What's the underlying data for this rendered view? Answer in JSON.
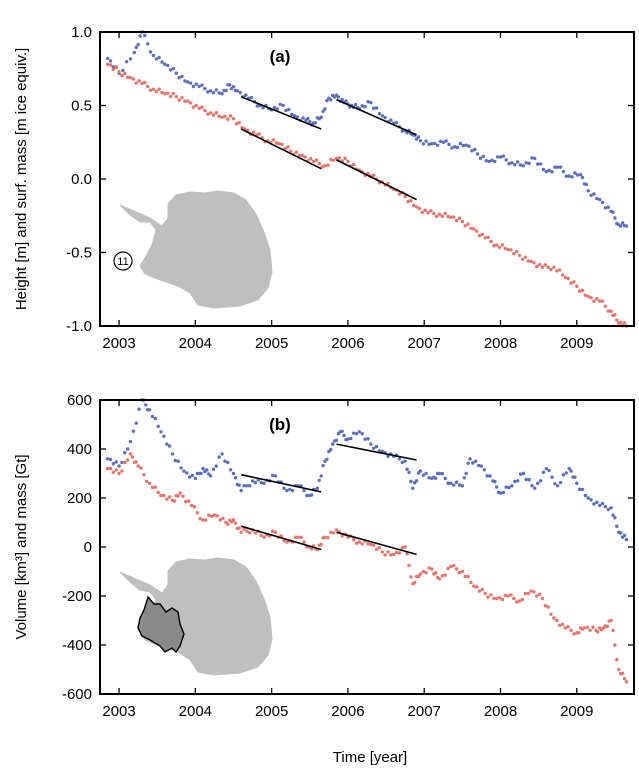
{
  "chart_data": [
    {
      "panel": "(a)",
      "type": "scatter",
      "xlim": [
        2002.75,
        2009.75
      ],
      "ylim": [
        -1.0,
        1.0
      ],
      "xticks": [
        "2003",
        "2004",
        "2005",
        "2006",
        "2007",
        "2008",
        "2009"
      ],
      "yticks": [
        "1.0",
        "0.5",
        "0.0",
        "-0.5",
        "-1.0"
      ],
      "ylabel": "Height [m] and surf. mass [m ice equiv.]",
      "inset_label": "11",
      "series": [
        {
          "color": "#5a6fbd",
          "points": [
            [
              2002.85,
              0.82
            ],
            [
              2003.0,
              0.72
            ],
            [
              2003.2,
              0.86
            ],
            [
              2003.3,
              1.0
            ],
            [
              2003.45,
              0.84
            ],
            [
              2003.6,
              0.78
            ],
            [
              2003.75,
              0.72
            ],
            [
              2003.9,
              0.66
            ],
            [
              2004.05,
              0.63
            ],
            [
              2004.2,
              0.6
            ],
            [
              2004.35,
              0.58
            ],
            [
              2004.45,
              0.64
            ],
            [
              2004.55,
              0.6
            ],
            [
              2004.7,
              0.55
            ],
            [
              2004.85,
              0.5
            ],
            [
              2005.0,
              0.47
            ],
            [
              2005.15,
              0.5
            ],
            [
              2005.3,
              0.43
            ],
            [
              2005.45,
              0.4
            ],
            [
              2005.55,
              0.38
            ],
            [
              2005.65,
              0.42
            ],
            [
              2005.75,
              0.55
            ],
            [
              2005.85,
              0.57
            ],
            [
              2005.95,
              0.52
            ],
            [
              2006.05,
              0.5
            ],
            [
              2006.15,
              0.48
            ],
            [
              2006.3,
              0.52
            ],
            [
              2006.45,
              0.43
            ],
            [
              2006.6,
              0.38
            ],
            [
              2006.75,
              0.33
            ],
            [
              2006.85,
              0.3
            ],
            [
              2006.95,
              0.26
            ],
            [
              2007.1,
              0.24
            ],
            [
              2007.25,
              0.25
            ],
            [
              2007.4,
              0.22
            ],
            [
              2007.55,
              0.23
            ],
            [
              2007.7,
              0.17
            ],
            [
              2007.85,
              0.12
            ],
            [
              2008.0,
              0.15
            ],
            [
              2008.15,
              0.11
            ],
            [
              2008.3,
              0.09
            ],
            [
              2008.45,
              0.14
            ],
            [
              2008.6,
              0.05
            ],
            [
              2008.75,
              0.08
            ],
            [
              2008.9,
              0.02
            ],
            [
              2009.05,
              0.03
            ],
            [
              2009.15,
              -0.08
            ],
            [
              2009.3,
              -0.14
            ],
            [
              2009.45,
              -0.22
            ],
            [
              2009.55,
              -0.31
            ],
            [
              2009.65,
              -0.32
            ]
          ]
        },
        {
          "color": "#e8746c",
          "points": [
            [
              2002.85,
              0.78
            ],
            [
              2003.0,
              0.73
            ],
            [
              2003.15,
              0.69
            ],
            [
              2003.3,
              0.65
            ],
            [
              2003.45,
              0.61
            ],
            [
              2003.6,
              0.58
            ],
            [
              2003.75,
              0.56
            ],
            [
              2003.9,
              0.53
            ],
            [
              2004.05,
              0.48
            ],
            [
              2004.2,
              0.45
            ],
            [
              2004.35,
              0.42
            ],
            [
              2004.5,
              0.41
            ],
            [
              2004.65,
              0.34
            ],
            [
              2004.8,
              0.3
            ],
            [
              2004.95,
              0.26
            ],
            [
              2005.1,
              0.24
            ],
            [
              2005.25,
              0.19
            ],
            [
              2005.4,
              0.16
            ],
            [
              2005.55,
              0.12
            ],
            [
              2005.7,
              0.09
            ],
            [
              2005.85,
              0.14
            ],
            [
              2006.0,
              0.12
            ],
            [
              2006.15,
              0.06
            ],
            [
              2006.3,
              0.02
            ],
            [
              2006.45,
              -0.02
            ],
            [
              2006.6,
              -0.07
            ],
            [
              2006.75,
              -0.12
            ],
            [
              2006.9,
              -0.19
            ],
            [
              2007.05,
              -0.23
            ],
            [
              2007.2,
              -0.24
            ],
            [
              2007.35,
              -0.26
            ],
            [
              2007.5,
              -0.29
            ],
            [
              2007.65,
              -0.34
            ],
            [
              2007.8,
              -0.4
            ],
            [
              2007.95,
              -0.45
            ],
            [
              2008.1,
              -0.48
            ],
            [
              2008.25,
              -0.52
            ],
            [
              2008.4,
              -0.56
            ],
            [
              2008.55,
              -0.6
            ],
            [
              2008.7,
              -0.6
            ],
            [
              2008.85,
              -0.67
            ],
            [
              2009.0,
              -0.73
            ],
            [
              2009.15,
              -0.8
            ],
            [
              2009.3,
              -0.83
            ],
            [
              2009.45,
              -0.9
            ],
            [
              2009.55,
              -0.98
            ],
            [
              2009.65,
              -1.0
            ]
          ]
        }
      ],
      "trend_lines": [
        {
          "x": [
            2004.6,
            2005.65
          ],
          "y": [
            0.56,
            0.34
          ]
        },
        {
          "x": [
            2005.85,
            2006.9
          ],
          "y": [
            0.54,
            0.3
          ]
        },
        {
          "x": [
            2004.6,
            2005.65
          ],
          "y": [
            0.34,
            0.07
          ]
        },
        {
          "x": [
            2005.85,
            2006.9
          ],
          "y": [
            0.13,
            -0.14
          ]
        }
      ]
    },
    {
      "panel": "(b)",
      "type": "scatter",
      "xlim": [
        2002.75,
        2009.75
      ],
      "ylim": [
        -600,
        600
      ],
      "xticks": [
        "2003",
        "2004",
        "2005",
        "2006",
        "2007",
        "2008",
        "2009"
      ],
      "yticks": [
        "600",
        "400",
        "200",
        "0",
        "-200",
        "-400",
        "-600"
      ],
      "ylabel": "Volume [km³] and mass [Gt]",
      "xlabel": "Time [year]",
      "series": [
        {
          "color": "#5a6fbd",
          "points": [
            [
              2002.85,
              360
            ],
            [
              2003.0,
              330
            ],
            [
              2003.15,
              430
            ],
            [
              2003.3,
              600
            ],
            [
              2003.4,
              560
            ],
            [
              2003.55,
              470
            ],
            [
              2003.7,
              380
            ],
            [
              2003.85,
              310
            ],
            [
              2004.0,
              280
            ],
            [
              2004.1,
              320
            ],
            [
              2004.2,
              290
            ],
            [
              2004.35,
              380
            ],
            [
              2004.5,
              300
            ],
            [
              2004.6,
              230
            ],
            [
              2004.75,
              270
            ],
            [
              2004.9,
              260
            ],
            [
              2005.05,
              290
            ],
            [
              2005.2,
              230
            ],
            [
              2005.35,
              250
            ],
            [
              2005.5,
              210
            ],
            [
              2005.6,
              240
            ],
            [
              2005.7,
              350
            ],
            [
              2005.8,
              420
            ],
            [
              2005.9,
              470
            ],
            [
              2006.0,
              440
            ],
            [
              2006.15,
              470
            ],
            [
              2006.3,
              420
            ],
            [
              2006.45,
              390
            ],
            [
              2006.6,
              370
            ],
            [
              2006.75,
              350
            ],
            [
              2006.85,
              240
            ],
            [
              2006.95,
              310
            ],
            [
              2007.1,
              280
            ],
            [
              2007.2,
              300
            ],
            [
              2007.35,
              260
            ],
            [
              2007.5,
              250
            ],
            [
              2007.6,
              360
            ],
            [
              2007.75,
              330
            ],
            [
              2007.9,
              270
            ],
            [
              2008.0,
              220
            ],
            [
              2008.15,
              250
            ],
            [
              2008.3,
              300
            ],
            [
              2008.45,
              240
            ],
            [
              2008.6,
              320
            ],
            [
              2008.75,
              250
            ],
            [
              2008.9,
              320
            ],
            [
              2009.0,
              260
            ],
            [
              2009.15,
              200
            ],
            [
              2009.3,
              170
            ],
            [
              2009.45,
              160
            ],
            [
              2009.55,
              60
            ],
            [
              2009.65,
              30
            ]
          ]
        },
        {
          "color": "#e8746c",
          "points": [
            [
              2002.85,
              320
            ],
            [
              2003.0,
              300
            ],
            [
              2003.15,
              380
            ],
            [
              2003.25,
              330
            ],
            [
              2003.4,
              260
            ],
            [
              2003.55,
              210
            ],
            [
              2003.7,
              190
            ],
            [
              2003.8,
              220
            ],
            [
              2003.95,
              170
            ],
            [
              2004.1,
              110
            ],
            [
              2004.25,
              130
            ],
            [
              2004.4,
              100
            ],
            [
              2004.5,
              110
            ],
            [
              2004.6,
              60
            ],
            [
              2004.75,
              70
            ],
            [
              2004.9,
              40
            ],
            [
              2005.05,
              60
            ],
            [
              2005.2,
              20
            ],
            [
              2005.35,
              40
            ],
            [
              2005.5,
              0
            ],
            [
              2005.6,
              -10
            ],
            [
              2005.7,
              40
            ],
            [
              2005.85,
              70
            ],
            [
              2006.0,
              40
            ],
            [
              2006.15,
              20
            ],
            [
              2006.3,
              10
            ],
            [
              2006.45,
              -20
            ],
            [
              2006.6,
              -30
            ],
            [
              2006.75,
              0
            ],
            [
              2006.85,
              -150
            ],
            [
              2006.95,
              -110
            ],
            [
              2007.1,
              -90
            ],
            [
              2007.2,
              -130
            ],
            [
              2007.35,
              -80
            ],
            [
              2007.5,
              -100
            ],
            [
              2007.65,
              -160
            ],
            [
              2007.8,
              -190
            ],
            [
              2007.95,
              -210
            ],
            [
              2008.1,
              -200
            ],
            [
              2008.25,
              -220
            ],
            [
              2008.4,
              -180
            ],
            [
              2008.55,
              -210
            ],
            [
              2008.7,
              -290
            ],
            [
              2008.85,
              -330
            ],
            [
              2009.0,
              -350
            ],
            [
              2009.1,
              -330
            ],
            [
              2009.25,
              -340
            ],
            [
              2009.35,
              -330
            ],
            [
              2009.45,
              -300
            ],
            [
              2009.55,
              -500
            ],
            [
              2009.65,
              -550
            ]
          ]
        }
      ],
      "trend_lines": [
        {
          "x": [
            2004.6,
            2005.65
          ],
          "y": [
            295,
            225
          ]
        },
        {
          "x": [
            2005.85,
            2006.9
          ],
          "y": [
            420,
            355
          ]
        },
        {
          "x": [
            2004.6,
            2005.65
          ],
          "y": [
            85,
            -10
          ]
        },
        {
          "x": [
            2005.85,
            2006.9
          ],
          "y": [
            60,
            -30
          ]
        }
      ]
    }
  ]
}
